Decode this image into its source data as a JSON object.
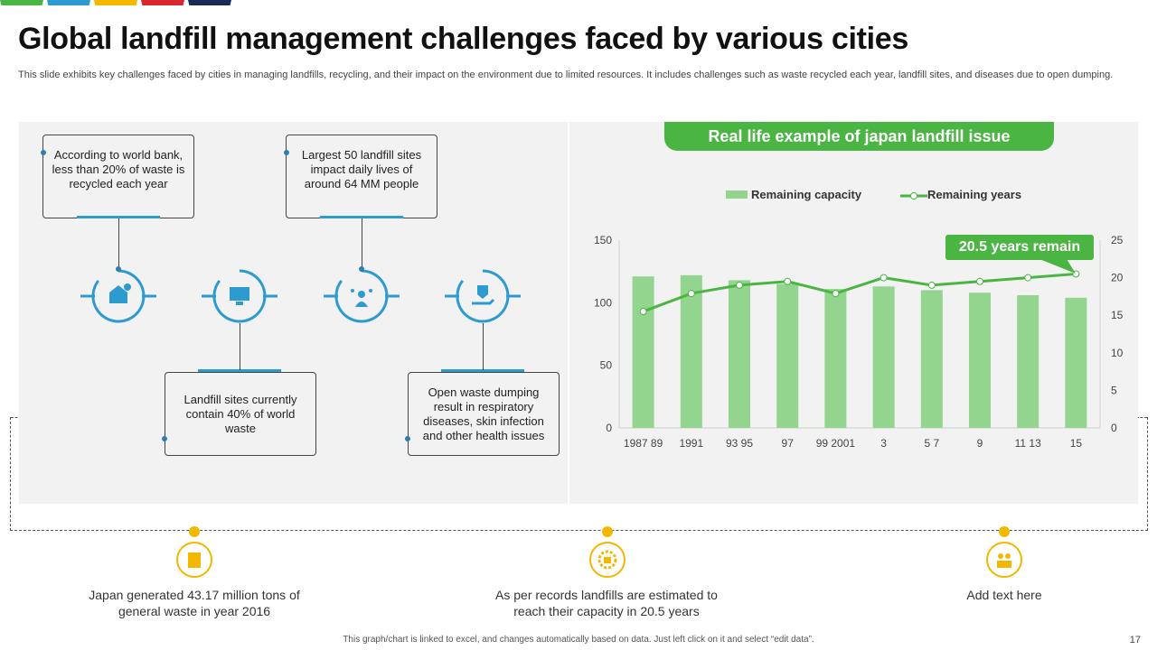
{
  "header": {
    "title": "Global landfill management challenges faced by various cities",
    "subtitle": "This slide exhibits key challenges faced by cities in managing landfills, recycling, and their impact on the environment due to limited resources. It includes challenges such as waste recycled each year,  landfill sites, and diseases due to open dumping."
  },
  "colors": {
    "strip": [
      "#4bb543",
      "#2e9bd0",
      "#f5b800",
      "#d9272e",
      "#1b2a55"
    ],
    "accent_blue": "#2e9bd0",
    "green": "#4bb543",
    "bar_green": "#93d48e",
    "yellow": "#f2b800"
  },
  "challenges": [
    {
      "text": "According to world bank, less than 20% of waste is recycled each year",
      "icon": "recycle-money-icon"
    },
    {
      "text": "Landfill sites currently contain 40% of world waste",
      "icon": "computer-icon"
    },
    {
      "text": "Largest 50 landfill sites impact daily lives of around 64 MM people",
      "icon": "people-network-icon"
    },
    {
      "text": "Open waste dumping result in respiratory diseases, skin infection and other health issues",
      "icon": "health-hand-icon"
    }
  ],
  "graph": {
    "title": "Real life example of japan landfill issue",
    "callout": "20.5 years remain"
  },
  "chart_data": {
    "type": "bar+line",
    "categories": [
      "1987 89",
      "1991",
      "93 95",
      "97",
      "99 2001",
      "3",
      "5 7",
      "9",
      "11 13",
      "15"
    ],
    "series": [
      {
        "name": "Remaining capacity",
        "type": "bar",
        "axis": "left",
        "values": [
          121,
          122,
          118,
          115,
          111,
          113,
          110,
          108,
          106,
          104
        ]
      },
      {
        "name": "Remaining years",
        "type": "line",
        "axis": "right",
        "values": [
          15.5,
          17.9,
          19,
          19.5,
          17.9,
          20,
          19,
          19.5,
          20,
          20.5
        ]
      }
    ],
    "left_axis": {
      "ylim": [
        0,
        150
      ],
      "ticks": [
        0,
        50,
        100,
        150
      ]
    },
    "right_axis": {
      "ylim": [
        0,
        25
      ],
      "ticks": [
        0,
        5,
        10,
        15,
        20,
        25
      ]
    },
    "legend": "top",
    "grid": false
  },
  "facts": [
    {
      "text": "Japan generated 43.17 million tons of general waste in year 2016",
      "icon": "waste-bin-icon"
    },
    {
      "text": "As per records landfills are estimated to reach their capacity in 20.5 years",
      "icon": "factory-gear-icon"
    },
    {
      "text": "Add text here",
      "icon": "team-icon"
    }
  ],
  "footer": {
    "note": "This graph/chart is linked to excel,  and changes automatically based on data. Just left click on it and select “edit data”.",
    "page": "17"
  }
}
